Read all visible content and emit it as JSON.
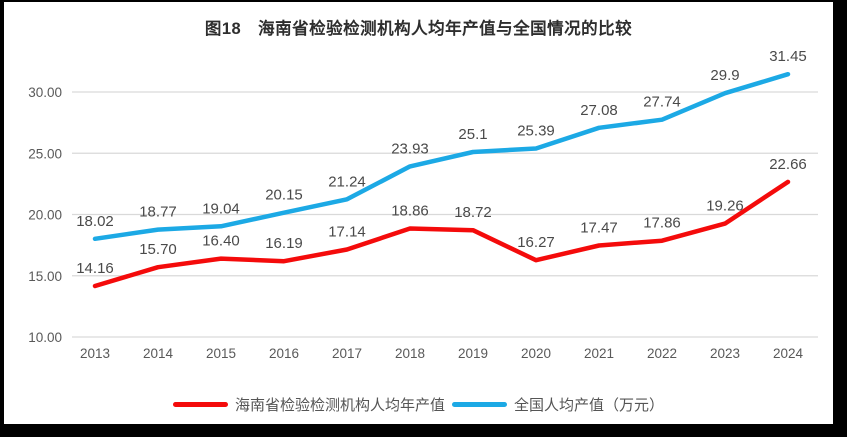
{
  "chart_data": {
    "type": "line",
    "title": "图18　海南省检验检测机构人均年产值与全国情况的比较",
    "categories": [
      "2013",
      "2014",
      "2015",
      "2016",
      "2017",
      "2018",
      "2019",
      "2020",
      "2021",
      "2022",
      "2023",
      "2024"
    ],
    "series": [
      {
        "name": "海南省检验检测机构人均年产值",
        "color": "#f40b0b",
        "values": [
          14.16,
          15.7,
          16.4,
          16.19,
          17.14,
          18.86,
          18.72,
          16.27,
          17.47,
          17.86,
          19.26,
          22.66
        ],
        "labels": [
          "14.16",
          "15.70",
          "16.40",
          "16.19",
          "17.14",
          "18.86",
          "18.72",
          "16.27",
          "17.47",
          "17.86",
          "19.26",
          "22.66"
        ]
      },
      {
        "name": "全国人均产值（万元）",
        "color": "#1ca9e5",
        "values": [
          18.02,
          18.77,
          19.04,
          20.15,
          21.24,
          23.93,
          25.1,
          25.39,
          27.08,
          27.74,
          29.9,
          31.45
        ],
        "labels": [
          "18.02",
          "18.77",
          "19.04",
          "20.15",
          "21.24",
          "23.93",
          "25.1",
          "25.39",
          "27.08",
          "27.74",
          "29.9",
          "31.45"
        ]
      }
    ],
    "ylim": [
      10,
      33
    ],
    "yticks": [
      10,
      15,
      20,
      25,
      30
    ],
    "ytick_labels": [
      "10.00",
      "15.00",
      "20.00",
      "25.00",
      "30.00"
    ],
    "grid": true,
    "legend_position": "bottom",
    "colors": {
      "gridline": "#d9d9d9",
      "tick_text": "#595959",
      "data_label_text": "#4a4a4a",
      "title_text": "#2e2e2e",
      "frame_border": "#000000",
      "background": "#ffffff"
    }
  }
}
